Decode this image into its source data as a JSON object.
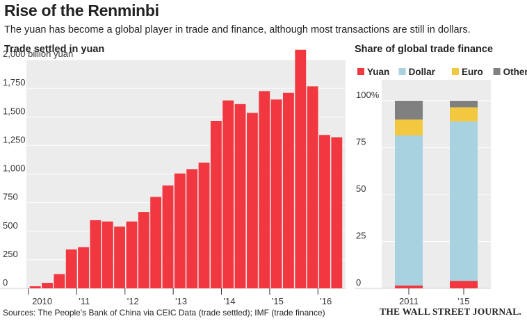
{
  "header": {
    "title": "Rise of the Renminbi",
    "subtitle": "The yuan has become a global player in trade and finance, although most transactions are still in dollars."
  },
  "footer": {
    "source": "Sources: The People's Bank of China via CEIC Data (trade settled); IMF (trade finance)",
    "brand": "THE WALL STREET JOURNAL."
  },
  "colors": {
    "yuan": "#f1373f",
    "dollar": "#a8d2e0",
    "euro": "#f2c841",
    "others": "#808080",
    "panel_bg": "#ececec",
    "grid": "#ffffff"
  },
  "chart_data": [
    {
      "type": "bar",
      "title": "Trade settled in yuan",
      "unit_label": "2,000 billion yuan",
      "ylim": [
        0,
        2000
      ],
      "ytick_values": [
        0,
        250,
        500,
        750,
        1000,
        1250,
        1500,
        1750,
        2000
      ],
      "ytick_labels": [
        "0",
        "250",
        "500",
        "750",
        "1,000",
        "1,250",
        "1,500",
        "1,750",
        "2,000 billion yuan"
      ],
      "xtick_labels": [
        "2010",
        "'11",
        "'12",
        "'13",
        "'14",
        "'15",
        "'16"
      ],
      "x_period": "quarterly, 2010 Q1 – 2016 Q2",
      "values": [
        18,
        48,
        125,
        340,
        360,
        596,
        585,
        540,
        585,
        668,
        800,
        900,
        1005,
        1043,
        1100,
        1465,
        1644,
        1612,
        1535,
        1725,
        1652,
        1710,
        2087,
        1767,
        1342,
        1322
      ],
      "grid": true
    },
    {
      "type": "bar",
      "stacked": true,
      "title": "Share of global trade finance",
      "ylim": [
        0,
        100
      ],
      "ytick_values": [
        0,
        25,
        50,
        75,
        100
      ],
      "ytick_labels": [
        "0",
        "25",
        "50",
        "75",
        "100%"
      ],
      "categories": [
        "2011",
        "'15"
      ],
      "series": [
        {
          "name": "Yuan",
          "values": [
            1.5,
            4
          ]
        },
        {
          "name": "Dollar",
          "values": [
            80,
            85
          ]
        },
        {
          "name": "Euro",
          "values": [
            8.5,
            7.5
          ]
        },
        {
          "name": "Others",
          "values": [
            10,
            3.5
          ]
        }
      ],
      "legend": "top",
      "grid": true
    }
  ]
}
